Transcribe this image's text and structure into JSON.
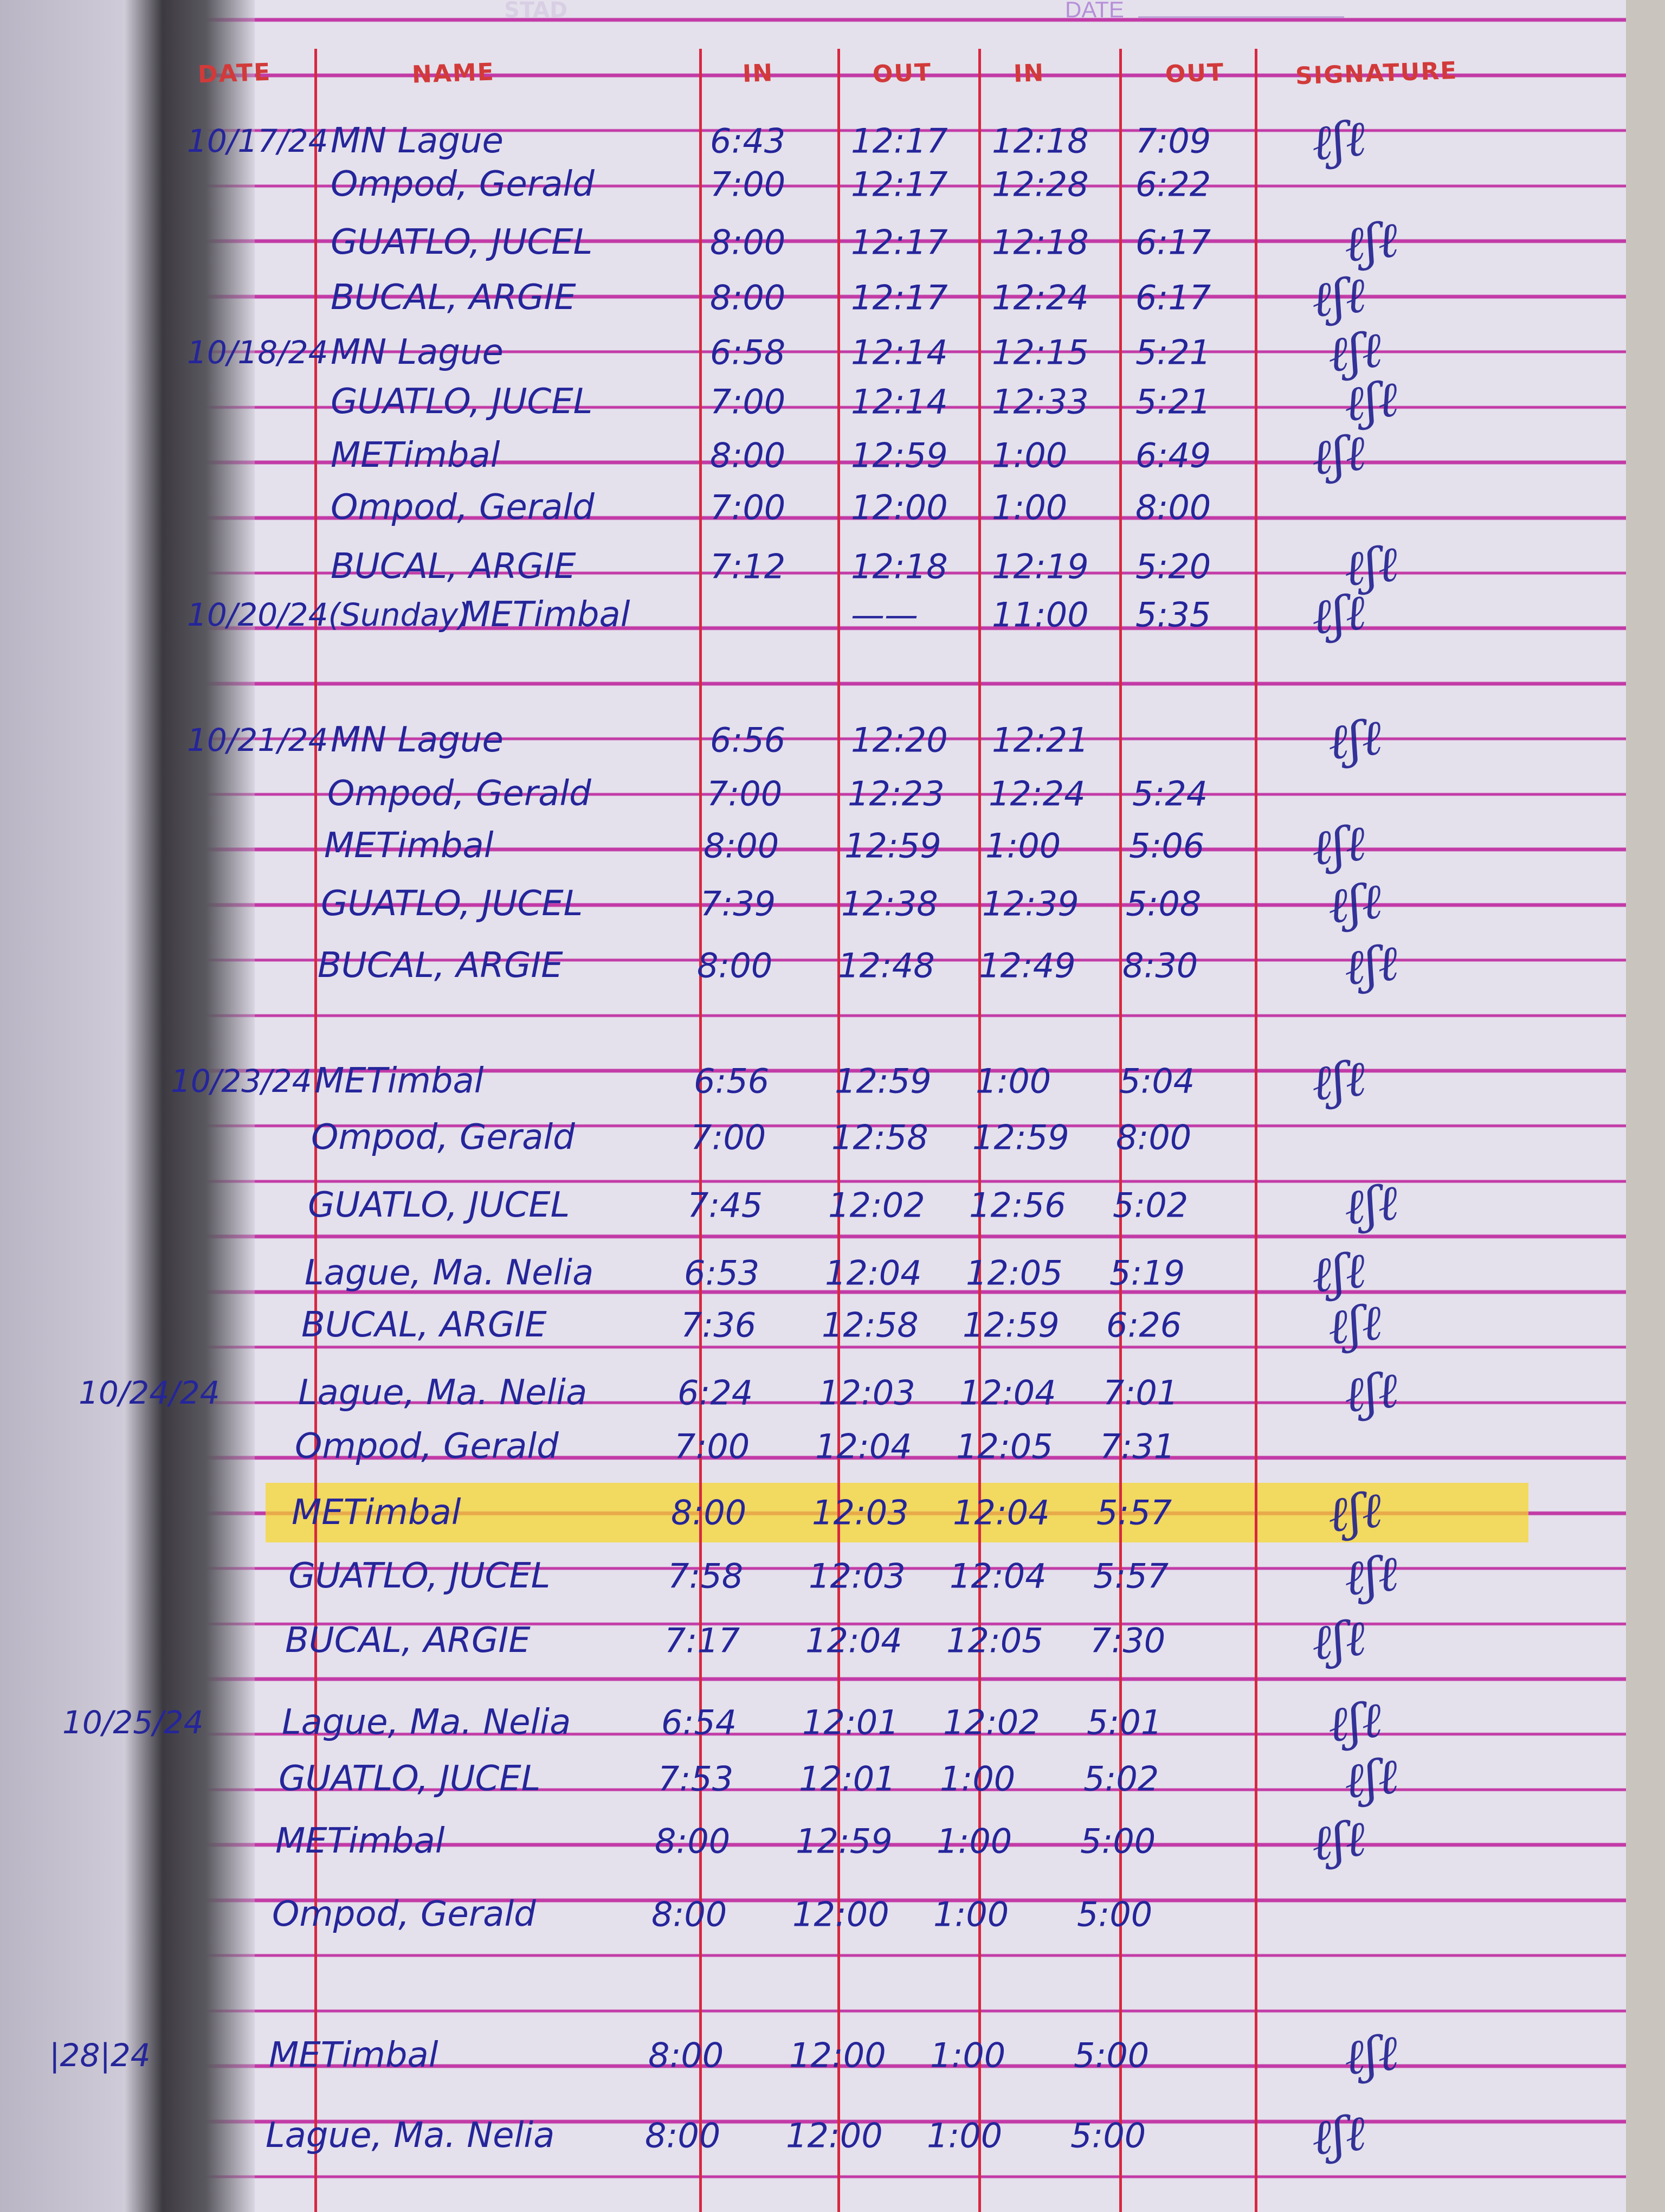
{
  "page_header": {
    "faint_label": "STAD",
    "date_label": "DATE"
  },
  "columns": [
    "DATE",
    "NAME",
    "IN",
    "OUT",
    "IN",
    "OUT",
    "SIGNATURE"
  ],
  "highlight_color": "#f6d628",
  "ink_color": "#25259a",
  "highlighted_row": 22,
  "rows": [
    {
      "date": "10/17/24",
      "name": "MN Lague",
      "in1": "6:43",
      "out1": "12:17",
      "in2": "12:18",
      "out2": "7:09",
      "signed": true
    },
    {
      "date": "",
      "name": "Ompod, Gerald",
      "in1": "7:00",
      "out1": "12:17",
      "in2": "12:28",
      "out2": "6:22",
      "signed": false
    },
    {
      "date": "",
      "name": "GUATLO, JUCEL",
      "in1": "8:00",
      "out1": "12:17",
      "in2": "12:18",
      "out2": "6:17",
      "signed": true
    },
    {
      "date": "",
      "name": "BUCAL, ARGIE",
      "in1": "8:00",
      "out1": "12:17",
      "in2": "12:24",
      "out2": "6:17",
      "signed": true
    },
    {
      "date": "10/18/24",
      "name": "MN Lague",
      "in1": "6:58",
      "out1": "12:14",
      "in2": "12:15",
      "out2": "5:21",
      "signed": true
    },
    {
      "date": "",
      "name": "GUATLO, JUCEL",
      "in1": "7:00",
      "out1": "12:14",
      "in2": "12:33",
      "out2": "5:21",
      "signed": true
    },
    {
      "date": "",
      "name": "METimbal",
      "in1": "8:00",
      "out1": "12:59",
      "in2": "1:00",
      "out2": "6:49",
      "signed": true
    },
    {
      "date": "",
      "name": "Ompod, Gerald",
      "in1": "7:00",
      "out1": "12:00",
      "in2": "1:00",
      "out2": "8:00",
      "signed": false
    },
    {
      "date": "",
      "name": "BUCAL, ARGIE",
      "in1": "7:12",
      "out1": "12:18",
      "in2": "12:19",
      "out2": "5:20",
      "signed": true
    },
    {
      "date": "10/20/24(Sunday)",
      "name": "METimbal",
      "in1": "",
      "out1": "——",
      "in2": "11:00",
      "out2": "5:35",
      "signed": true
    },
    {
      "date": "10/21/24",
      "name": "MN Lague",
      "in1": "6:56",
      "out1": "12:20",
      "in2": "12:21",
      "out2": "",
      "signed": true
    },
    {
      "date": "",
      "name": "Ompod, Gerald",
      "in1": "7:00",
      "out1": "12:23",
      "in2": "12:24",
      "out2": "5:24",
      "signed": false
    },
    {
      "date": "",
      "name": "METimbal",
      "in1": "8:00",
      "out1": "12:59",
      "in2": "1:00",
      "out2": "5:06",
      "signed": true
    },
    {
      "date": "",
      "name": "GUATLO, JUCEL",
      "in1": "7:39",
      "out1": "12:38",
      "in2": "12:39",
      "out2": "5:08",
      "signed": true
    },
    {
      "date": "",
      "name": "BUCAL, ARGIE",
      "in1": "8:00",
      "out1": "12:48",
      "in2": "12:49",
      "out2": "8:30",
      "signed": true
    },
    {
      "date": "10/23/24",
      "name": "METimbal",
      "in1": "6:56",
      "out1": "12:59",
      "in2": "1:00",
      "out2": "5:04",
      "signed": true
    },
    {
      "date": "",
      "name": "Ompod, Gerald",
      "in1": "7:00",
      "out1": "12:58",
      "in2": "12:59",
      "out2": "8:00",
      "signed": false
    },
    {
      "date": "",
      "name": "GUATLO, JUCEL",
      "in1": "7:45",
      "out1": "12:02",
      "in2": "12:56",
      "out2": "5:02",
      "signed": true
    },
    {
      "date": "",
      "name": "Lague, Ma. Nelia",
      "in1": "6:53",
      "out1": "12:04",
      "in2": "12:05",
      "out2": "5:19",
      "signed": true
    },
    {
      "date": "",
      "name": "BUCAL, ARGIE",
      "in1": "7:36",
      "out1": "12:58",
      "in2": "12:59",
      "out2": "6:26",
      "signed": true
    },
    {
      "date": "10/24/24",
      "name": "Lague, Ma. Nelia",
      "in1": "6:24",
      "out1": "12:03",
      "in2": "12:04",
      "out2": "7:01",
      "signed": true
    },
    {
      "date": "",
      "name": "Ompod, Gerald",
      "in1": "7:00",
      "out1": "12:04",
      "in2": "12:05",
      "out2": "7:31",
      "signed": false
    },
    {
      "date": "",
      "name": "METimbal",
      "in1": "8:00",
      "out1": "12:03",
      "in2": "12:04",
      "out2": "5:57",
      "signed": true
    },
    {
      "date": "",
      "name": "GUATLO, JUCEL",
      "in1": "7:58",
      "out1": "12:03",
      "in2": "12:04",
      "out2": "5:57",
      "signed": true
    },
    {
      "date": "",
      "name": "BUCAL, ARGIE",
      "in1": "7:17",
      "out1": "12:04",
      "in2": "12:05",
      "out2": "7:30",
      "signed": true
    },
    {
      "date": "10/25/24",
      "name": "Lague, Ma. Nelia",
      "in1": "6:54",
      "out1": "12:01",
      "in2": "12:02",
      "out2": "5:01",
      "signed": true
    },
    {
      "date": "",
      "name": "GUATLO, JUCEL",
      "in1": "7:53",
      "out1": "12:01",
      "in2": "1:00",
      "out2": "5:02",
      "signed": true
    },
    {
      "date": "",
      "name": "METimbal",
      "in1": "8:00",
      "out1": "12:59",
      "in2": "1:00",
      "out2": "5:00",
      "signed": true
    },
    {
      "date": "",
      "name": "Ompod, Gerald",
      "in1": "8:00",
      "out1": "12:00",
      "in2": "1:00",
      "out2": "5:00",
      "signed": false
    },
    {
      "date": "|28|24",
      "name": "METimbal",
      "in1": "8:00",
      "out1": "12:00",
      "in2": "1:00",
      "out2": "5:00",
      "signed": true
    },
    {
      "date": "",
      "name": "Lague, Ma. Nelia",
      "in1": "8:00",
      "out1": "12:00",
      "in2": "1:00",
      "out2": "5:00",
      "signed": true
    }
  ]
}
